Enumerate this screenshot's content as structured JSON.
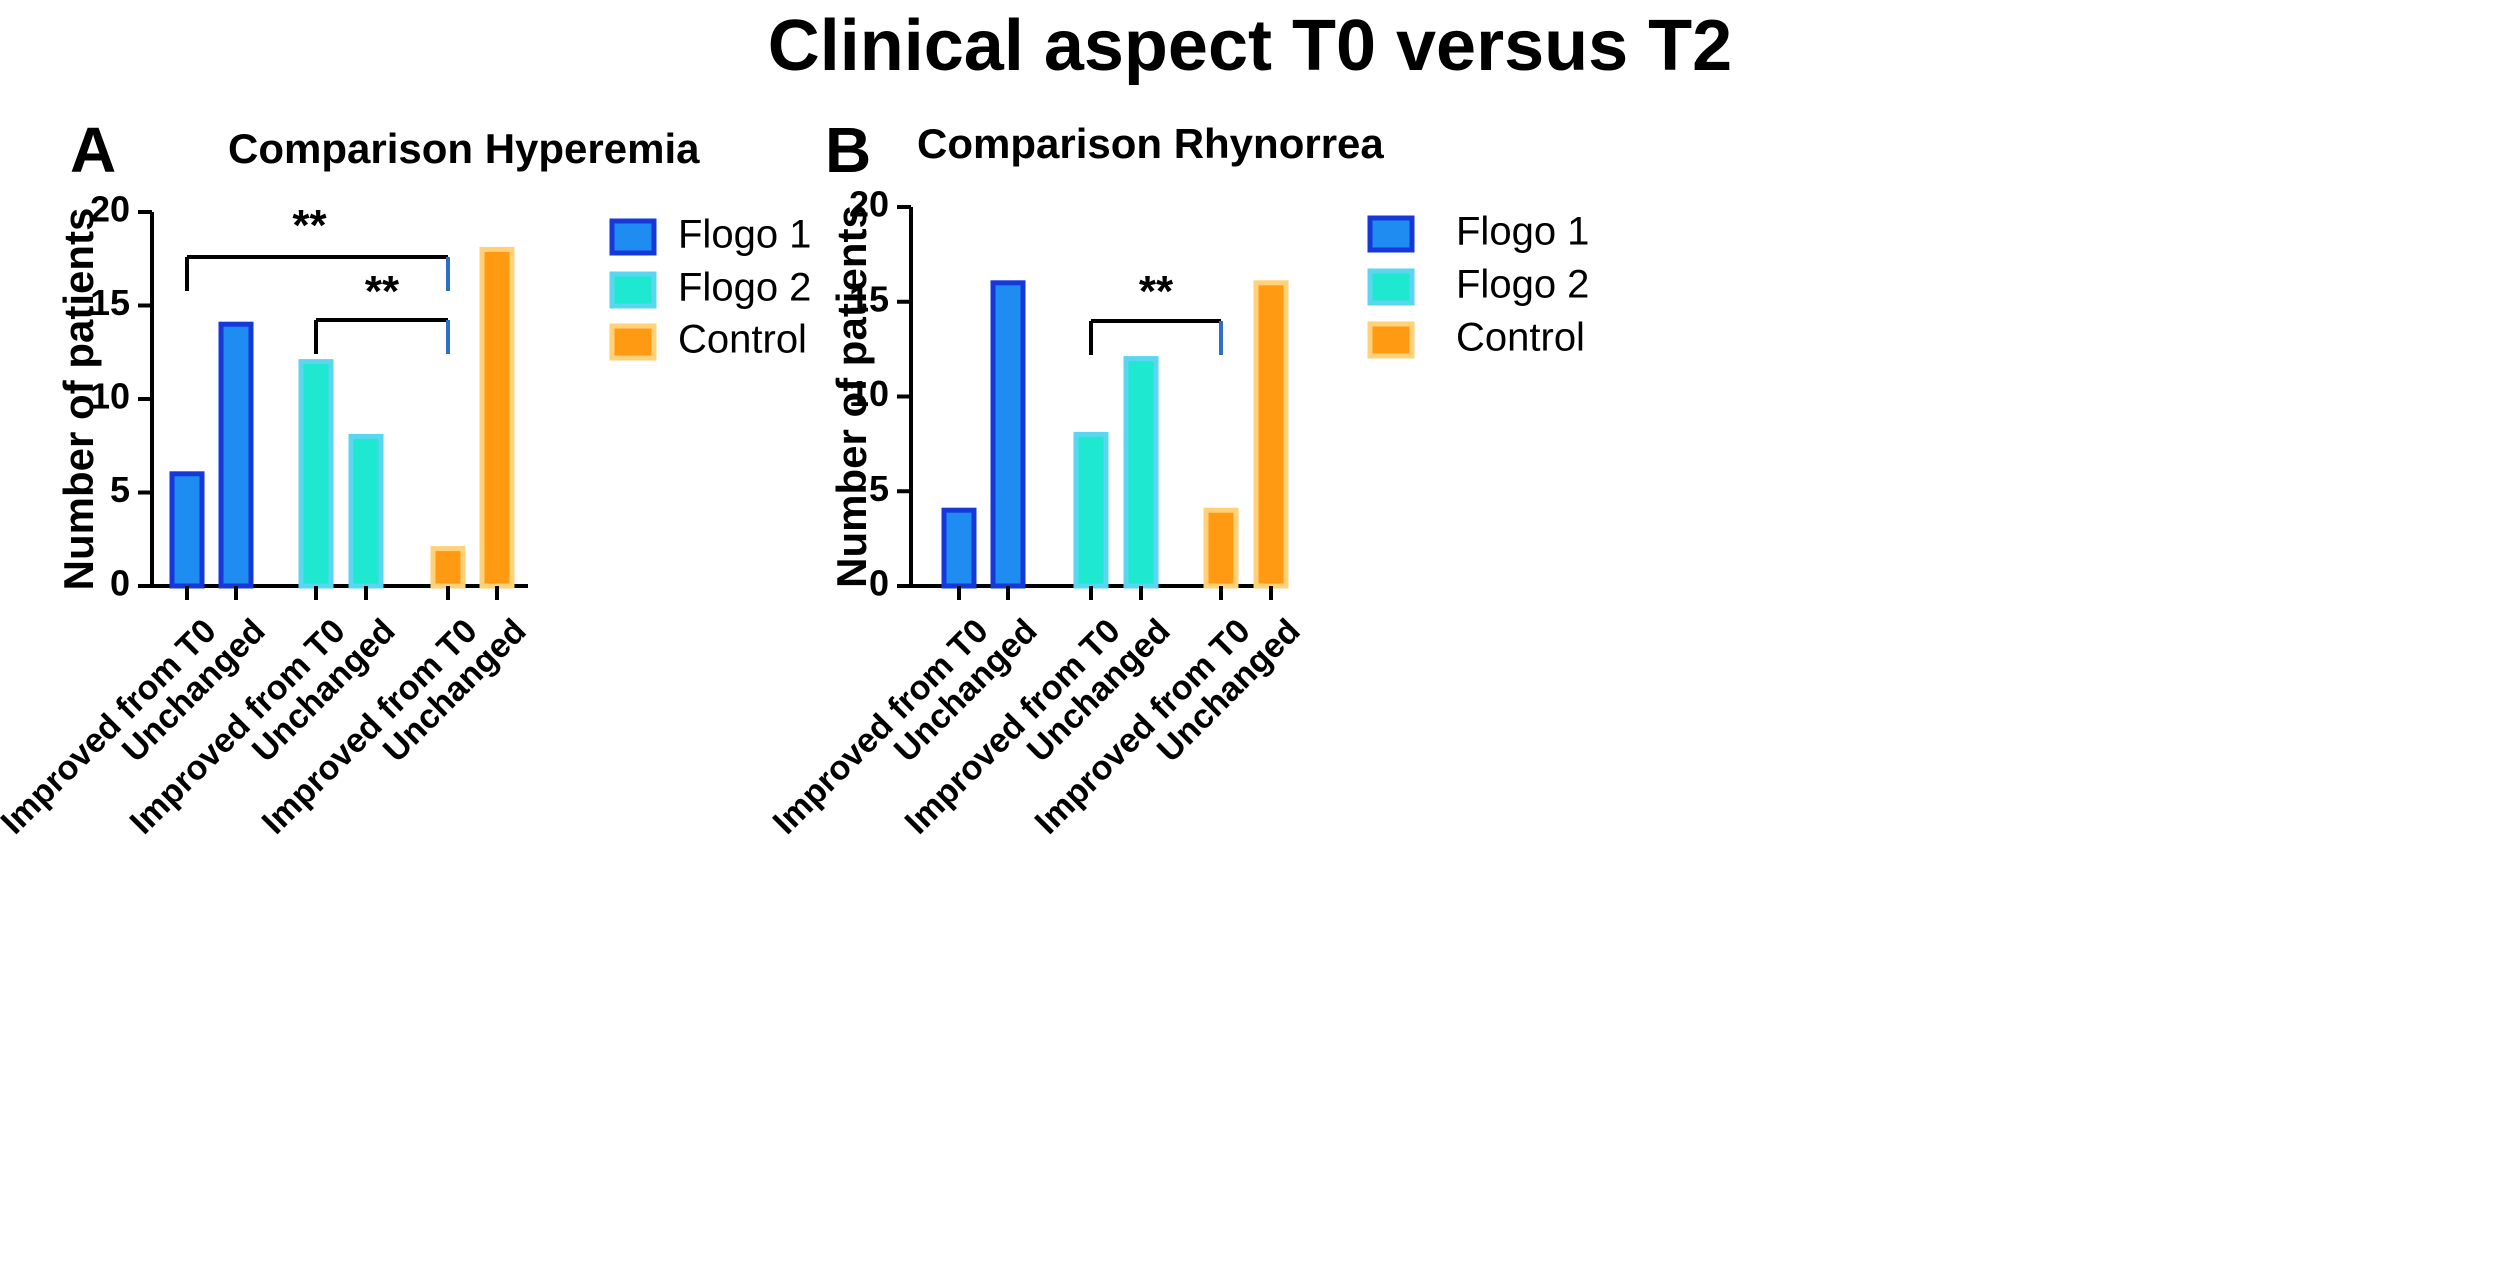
{
  "figure": {
    "title": "Clinical aspect T0 versus T2"
  },
  "colors": {
    "flogo1_fill": "#1e8cf0",
    "flogo1_edge": "#1638d8",
    "flogo2_fill": "#1ee8d0",
    "flogo2_edge": "#5ad6f0",
    "control_fill": "#ff9a12",
    "control_edge": "#ffd27a",
    "axis": "#000000",
    "bracket_tick": "#2f6fc8"
  },
  "chart_data": [
    {
      "type": "bar",
      "panel_letter": "A",
      "title": "Comparison Hyperemia",
      "xlabel": "",
      "ylabel": "Number of patients",
      "ylim": [
        0,
        20
      ],
      "yticks": [
        0,
        5,
        10,
        15,
        20
      ],
      "categories": [
        "Improved from T0",
        "Unchanged",
        "Improved from T0",
        "Unchanged",
        "Improved from T0",
        "Unchanged"
      ],
      "groups": [
        "Flogo 1",
        "Flogo 1",
        "Flogo 2",
        "Flogo 2",
        "Control",
        "Control"
      ],
      "values": [
        6,
        14,
        12,
        8,
        2,
        18
      ],
      "legend": [
        "Flogo 1",
        "Flogo 2",
        "Control"
      ],
      "annotations": [
        {
          "from": 0,
          "to": 4,
          "label": "**"
        },
        {
          "from": 2,
          "to": 4,
          "label": "**"
        }
      ]
    },
    {
      "type": "bar",
      "panel_letter": "B",
      "title": "Comparison Rhynorrea",
      "xlabel": "",
      "ylabel": "Number of patients",
      "ylim": [
        0,
        20
      ],
      "yticks": [
        0,
        5,
        10,
        15,
        20
      ],
      "categories": [
        "Improved from T0",
        "Unchanged",
        "Improved from T0",
        "Unchanged",
        "Improved from T0",
        "Unchanged"
      ],
      "groups": [
        "Flogo 1",
        "Flogo 1",
        "Flogo 2",
        "Flogo 2",
        "Control",
        "Control"
      ],
      "values": [
        4,
        16,
        8,
        12,
        4,
        16
      ],
      "legend": [
        "Flogo 1",
        "Flogo 2",
        "Control"
      ],
      "annotations": [
        {
          "from": 2,
          "to": 4,
          "label": "**"
        }
      ]
    }
  ]
}
